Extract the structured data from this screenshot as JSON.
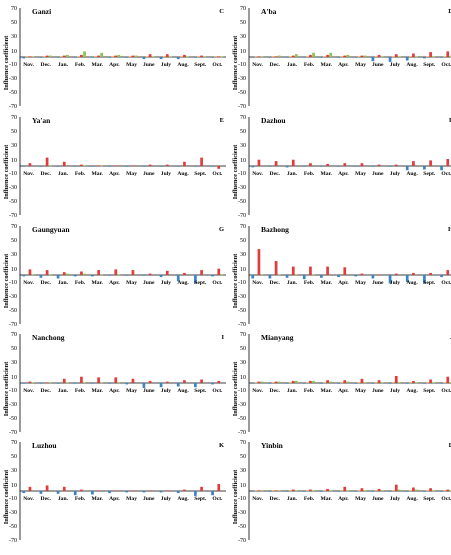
{
  "figure": {
    "y_axis_label": "Influence coefficient",
    "colors": {
      "red": "#e03c3c",
      "green": "#8cc24e",
      "blue": "#3a84c6",
      "orange": "#f0a040",
      "axis": "#000000"
    }
  },
  "chart_data": [
    {
      "type": "bar",
      "title": "Ganzi",
      "letter": "C",
      "ylabel": "Influence coefficient",
      "categories": [
        "Nov.",
        "Dec.",
        "Jan.",
        "Feb.",
        "Mar.",
        "Apr.",
        "May",
        "June",
        "July",
        "Aug.",
        "Sept.",
        "Oct."
      ],
      "yticks": [
        70,
        50,
        30,
        10,
        -10,
        -30,
        -50,
        -70
      ],
      "ylim": [
        -70,
        70
      ],
      "series": [
        {
          "color": "blue",
          "values": [
            -2,
            -1,
            -1,
            -1,
            -1,
            -1,
            -1,
            -3,
            -3,
            -3,
            -1,
            -1
          ]
        },
        {
          "color": "orange",
          "values": [
            1,
            1,
            1,
            1,
            1,
            1,
            1,
            1,
            1,
            1,
            1,
            1
          ]
        },
        {
          "color": "red",
          "values": [
            1,
            2,
            2,
            3,
            2,
            2,
            2,
            4,
            4,
            3,
            2,
            1
          ]
        },
        {
          "color": "green",
          "values": [
            1,
            2,
            3,
            8,
            6,
            3,
            2,
            1,
            1,
            1,
            1,
            1
          ]
        }
      ]
    },
    {
      "type": "bar",
      "title": "A'ba",
      "letter": "D",
      "ylabel": "Influence coefficient",
      "categories": [
        "Nov.",
        "Dec.",
        "Jan.",
        "Feb.",
        "Mar.",
        "Apr.",
        "May",
        "June",
        "July",
        "Aug.",
        "Sept.",
        "Oct."
      ],
      "yticks": [
        70,
        50,
        30,
        10,
        -10,
        -30,
        -50,
        -70
      ],
      "ylim": [
        -70,
        70
      ],
      "series": [
        {
          "color": "blue",
          "values": [
            -1,
            -1,
            -1,
            -1,
            -1,
            -1,
            -1,
            -6,
            -7,
            -5,
            -2,
            -1
          ]
        },
        {
          "color": "orange",
          "values": [
            1,
            1,
            1,
            1,
            1,
            1,
            1,
            1,
            1,
            1,
            1,
            1
          ]
        },
        {
          "color": "red",
          "values": [
            1,
            1,
            2,
            3,
            3,
            2,
            2,
            3,
            4,
            5,
            7,
            8
          ]
        },
        {
          "color": "green",
          "values": [
            1,
            2,
            4,
            6,
            6,
            3,
            2,
            1,
            1,
            1,
            1,
            1
          ]
        }
      ]
    },
    {
      "type": "bar",
      "title": "Ya'an",
      "letter": "E",
      "ylabel": "Influence coefficient",
      "categories": [
        "Nov.",
        "Dec.",
        "Jan.",
        "Feb.",
        "Mar.",
        "Apr.",
        "May",
        "June",
        "July",
        "Aug.",
        "Sept.",
        "Oct."
      ],
      "yticks": [
        70,
        50,
        30,
        10,
        -10,
        -30,
        -50,
        -70
      ],
      "ylim": [
        -70,
        70
      ],
      "series": [
        {
          "color": "blue",
          "values": [
            -1,
            -1,
            -1,
            -1,
            -1,
            -1,
            -1,
            -1,
            -1,
            -1,
            -1,
            -1
          ]
        },
        {
          "color": "orange",
          "values": [
            0,
            0,
            0,
            0,
            0,
            0,
            0,
            0,
            0,
            0,
            0,
            0
          ]
        },
        {
          "color": "red",
          "values": [
            4,
            12,
            6,
            2,
            1,
            1,
            1,
            2,
            2,
            6,
            12,
            -4
          ]
        },
        {
          "color": "green",
          "values": [
            0,
            1,
            0,
            1,
            1,
            0,
            0,
            0,
            0,
            0,
            0,
            0
          ]
        }
      ]
    },
    {
      "type": "bar",
      "title": "Dazhou",
      "letter": "F",
      "ylabel": "Influence coefficient",
      "categories": [
        "Nov.",
        "Dec.",
        "Jan.",
        "Feb.",
        "Mar.",
        "Apr.",
        "May",
        "June",
        "July",
        "Aug.",
        "Sept.",
        "Oct."
      ],
      "yticks": [
        70,
        50,
        30,
        10,
        -10,
        -30,
        -50,
        -70
      ],
      "ylim": [
        -70,
        70
      ],
      "series": [
        {
          "color": "blue",
          "values": [
            -2,
            -1,
            -2,
            -1,
            -1,
            -1,
            -1,
            -1,
            -1,
            -6,
            -5,
            -6
          ]
        },
        {
          "color": "orange",
          "values": [
            0,
            0,
            0,
            0,
            0,
            0,
            0,
            0,
            0,
            0,
            0,
            0
          ]
        },
        {
          "color": "red",
          "values": [
            9,
            7,
            9,
            4,
            3,
            4,
            4,
            2,
            2,
            7,
            8,
            10
          ]
        },
        {
          "color": "green",
          "values": [
            0,
            0,
            0,
            0,
            0,
            0,
            0,
            0,
            0,
            0,
            0,
            0
          ]
        }
      ]
    },
    {
      "type": "bar",
      "title": "Gaungyuan",
      "letter": "G",
      "ylabel": "Influence coefficient",
      "categories": [
        "Nov.",
        "Dec.",
        "Jan.",
        "Feb.",
        "Mar.",
        "Apr.",
        "May",
        "June",
        "July",
        "Aug.",
        "Sept.",
        "Oct."
      ],
      "yticks": [
        70,
        50,
        30,
        10,
        -10,
        -30,
        -50,
        -70
      ],
      "ylim": [
        -70,
        70
      ],
      "series": [
        {
          "color": "blue",
          "values": [
            -2,
            -4,
            -5,
            -2,
            -2,
            -1,
            -1,
            -1,
            -3,
            -9,
            -12,
            -2
          ]
        },
        {
          "color": "orange",
          "values": [
            0,
            0,
            0,
            0,
            0,
            0,
            0,
            0,
            0,
            0,
            0,
            0
          ]
        },
        {
          "color": "red",
          "values": [
            8,
            7,
            4,
            5,
            7,
            8,
            7,
            2,
            6,
            3,
            7,
            9
          ]
        },
        {
          "color": "green",
          "values": [
            1,
            1,
            2,
            2,
            1,
            1,
            0,
            0,
            0,
            0,
            0,
            1
          ]
        }
      ]
    },
    {
      "type": "bar",
      "title": "Bazhong",
      "letter": "H",
      "ylabel": "Influence coefficient",
      "categories": [
        "Nov.",
        "Dec.",
        "Jan.",
        "Feb.",
        "Mar.",
        "Apr.",
        "May",
        "June",
        "July",
        "Aug.",
        "Sept.",
        "Oct."
      ],
      "yticks": [
        70,
        50,
        30,
        10,
        -10,
        -30,
        -50,
        -70
      ],
      "ylim": [
        -70,
        70
      ],
      "series": [
        {
          "color": "blue",
          "values": [
            -5,
            -5,
            -4,
            -6,
            -4,
            -3,
            -2,
            -5,
            -12,
            -10,
            -12,
            -3
          ]
        },
        {
          "color": "orange",
          "values": [
            0,
            0,
            0,
            0,
            0,
            0,
            0,
            0,
            0,
            0,
            0,
            0
          ]
        },
        {
          "color": "red",
          "values": [
            37,
            20,
            12,
            12,
            12,
            11,
            2,
            1,
            2,
            3,
            3,
            7
          ]
        },
        {
          "color": "green",
          "values": [
            1,
            1,
            1,
            1,
            0,
            0,
            0,
            0,
            0,
            0,
            0,
            0
          ]
        }
      ]
    },
    {
      "type": "bar",
      "title": "Nanchong",
      "letter": "I",
      "ylabel": "Influence coefficient",
      "categories": [
        "Nov.",
        "Dec.",
        "Jan.",
        "Feb.",
        "Mar.",
        "Apr.",
        "May",
        "June",
        "July",
        "Aug.",
        "Sept.",
        "Oct."
      ],
      "yticks": [
        70,
        50,
        30,
        10,
        -10,
        -30,
        -50,
        -70
      ],
      "ylim": [
        -70,
        70
      ],
      "series": [
        {
          "color": "blue",
          "values": [
            -1,
            -1,
            -1,
            -1,
            -1,
            -1,
            -2,
            -7,
            -6,
            -5,
            -6,
            -2
          ]
        },
        {
          "color": "orange",
          "values": [
            0,
            0,
            0,
            0,
            0,
            0,
            0,
            0,
            0,
            0,
            0,
            0
          ]
        },
        {
          "color": "red",
          "values": [
            2,
            1,
            6,
            9,
            8,
            8,
            6,
            3,
            2,
            4,
            5,
            3
          ]
        },
        {
          "color": "green",
          "values": [
            1,
            1,
            1,
            1,
            1,
            1,
            0,
            0,
            0,
            0,
            0,
            0
          ]
        }
      ]
    },
    {
      "type": "bar",
      "title": "Mianyang",
      "letter": "J",
      "ylabel": "Influence coefficient",
      "categories": [
        "Nov.",
        "Dec.",
        "Jan.",
        "Feb.",
        "Mar.",
        "Apr.",
        "May",
        "June",
        "July",
        "Aug.",
        "Sept.",
        "Oct."
      ],
      "yticks": [
        70,
        50,
        30,
        10,
        -10,
        -30,
        -50,
        -70
      ],
      "ylim": [
        -70,
        70
      ],
      "series": [
        {
          "color": "blue",
          "values": [
            -1,
            -1,
            -1,
            -1,
            -1,
            -1,
            -1,
            -1,
            -1,
            -1,
            -1,
            -1
          ]
        },
        {
          "color": "orange",
          "values": [
            1,
            1,
            1,
            1,
            1,
            1,
            1,
            1,
            1,
            1,
            1,
            1
          ]
        },
        {
          "color": "red",
          "values": [
            2,
            2,
            3,
            3,
            4,
            4,
            6,
            4,
            10,
            3,
            5,
            9
          ]
        },
        {
          "color": "green",
          "values": [
            2,
            2,
            3,
            3,
            2,
            2,
            1,
            1,
            1,
            1,
            1,
            1
          ]
        }
      ]
    },
    {
      "type": "bar",
      "title": "Luzhou",
      "letter": "K",
      "ylabel": "Influence coefficient",
      "categories": [
        "Nov.",
        "Dec.",
        "Jan.",
        "Feb.",
        "Mar.",
        "Apr.",
        "May",
        "June",
        "July",
        "Aug.",
        "Sept.",
        "Oct."
      ],
      "yticks": [
        70,
        50,
        30,
        10,
        -10,
        -30,
        -50,
        -70
      ],
      "ylim": [
        -70,
        70
      ],
      "series": [
        {
          "color": "blue",
          "values": [
            -3,
            -4,
            -4,
            -6,
            -5,
            -3,
            -2,
            -2,
            -2,
            -3,
            -7,
            -6
          ]
        },
        {
          "color": "orange",
          "values": [
            0,
            0,
            0,
            0,
            0,
            0,
            0,
            0,
            0,
            0,
            0,
            0
          ]
        },
        {
          "color": "red",
          "values": [
            6,
            8,
            6,
            2,
            1,
            1,
            1,
            1,
            1,
            2,
            6,
            10
          ]
        },
        {
          "color": "green",
          "values": [
            0,
            0,
            0,
            0,
            0,
            0,
            0,
            0,
            0,
            0,
            0,
            0
          ]
        }
      ]
    },
    {
      "type": "bar",
      "title": "Yinbin",
      "letter": "L",
      "ylabel": "Influence coefficient",
      "categories": [
        "Nov.",
        "Dec.",
        "Jan.",
        "Feb.",
        "Mar.",
        "Apr.",
        "May",
        "June",
        "July",
        "Aug.",
        "Sept.",
        "Oct."
      ],
      "yticks": [
        70,
        50,
        30,
        10,
        -10,
        -30,
        -50,
        -70
      ],
      "ylim": [
        -70,
        70
      ],
      "series": [
        {
          "color": "blue",
          "values": [
            -1,
            -1,
            -1,
            -1,
            -1,
            -1,
            -1,
            -1,
            -1,
            -1,
            -1,
            -1
          ]
        },
        {
          "color": "orange",
          "values": [
            1,
            1,
            1,
            1,
            1,
            1,
            1,
            1,
            1,
            1,
            1,
            1
          ]
        },
        {
          "color": "red",
          "values": [
            1,
            1,
            2,
            2,
            3,
            6,
            4,
            3,
            9,
            5,
            4,
            2
          ]
        },
        {
          "color": "green",
          "values": [
            1,
            1,
            1,
            1,
            1,
            1,
            1,
            1,
            2,
            2,
            1,
            1
          ]
        }
      ]
    }
  ]
}
